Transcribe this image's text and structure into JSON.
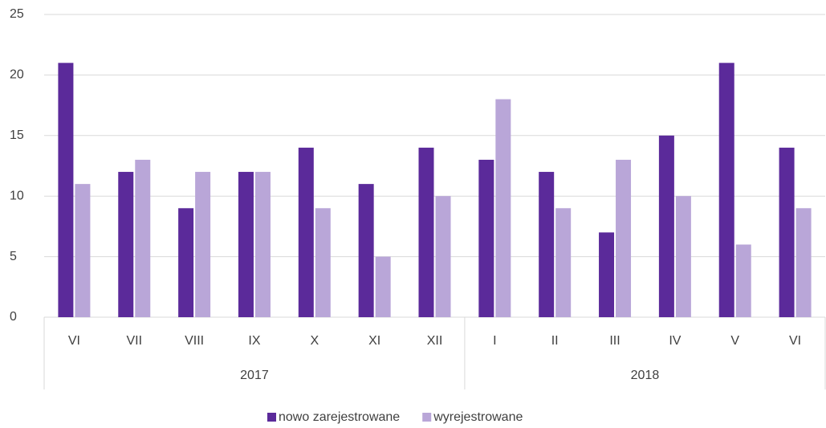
{
  "chart_data": {
    "type": "bar",
    "categories": [
      "VI",
      "VII",
      "VIII",
      "IX",
      "X",
      "XI",
      "XII",
      "I",
      "II",
      "III",
      "IV",
      "V",
      "VI"
    ],
    "years": [
      "2017",
      "2017",
      "2017",
      "2017",
      "2017",
      "2017",
      "2017",
      "2018",
      "2018",
      "2018",
      "2018",
      "2018",
      "2018"
    ],
    "series": [
      {
        "name": "nowo zarejestrowane",
        "color": "#5b2a9a",
        "values": [
          21,
          12,
          9,
          12,
          14,
          11,
          14,
          13,
          12,
          7,
          15,
          21,
          14
        ]
      },
      {
        "name": "wyrejestrowane",
        "color": "#b9a6d8",
        "values": [
          11,
          13,
          12,
          12,
          9,
          5,
          10,
          18,
          9,
          13,
          10,
          6,
          9
        ]
      }
    ],
    "ylim": [
      0,
      25
    ],
    "yticks": [
      0,
      5,
      10,
      15,
      20,
      25
    ],
    "grid": true,
    "legend": "bottom"
  }
}
